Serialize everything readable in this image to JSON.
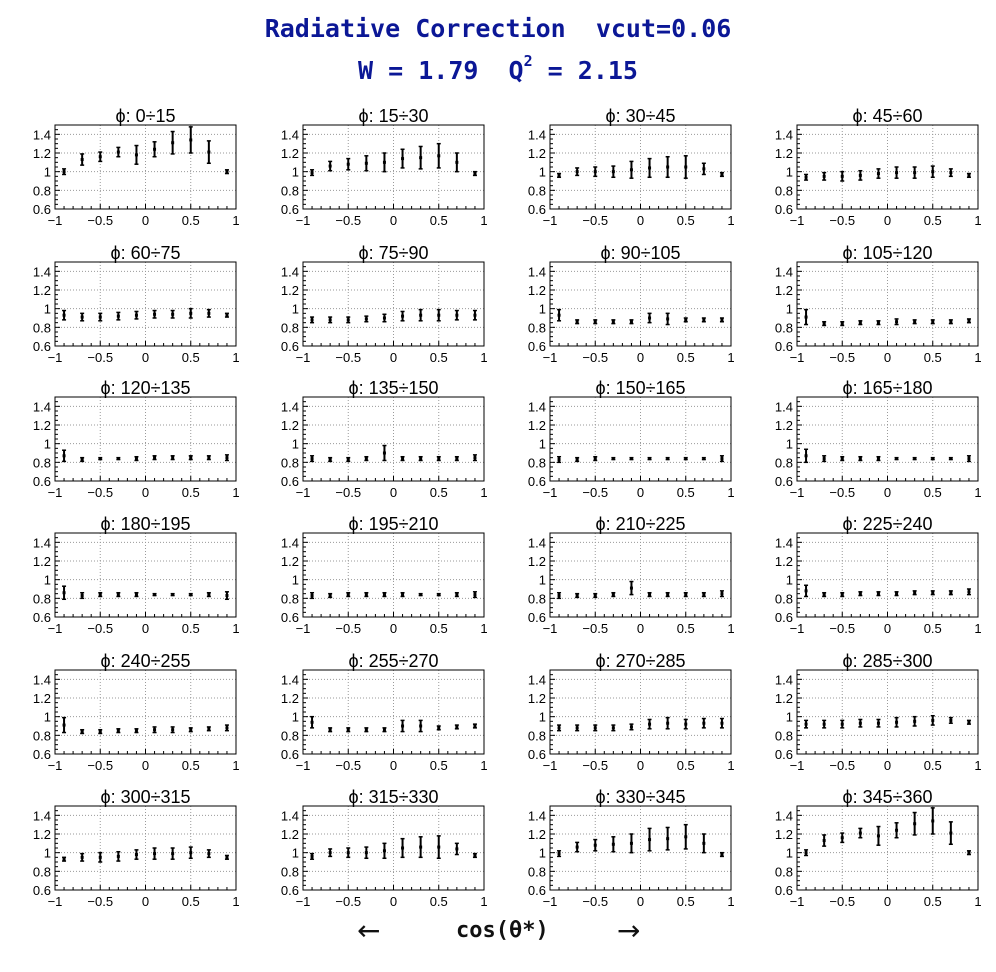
{
  "title": "Radiative Correction  vcut=0.06",
  "subtitle": {
    "w_part": "W = 1.79  Q",
    "sup": "2",
    "q_part": " = 2.15"
  },
  "xlabel": "cos(θ*)",
  "arrows": {
    "left": "←",
    "right": "→"
  },
  "colors": {
    "title": "#0b1796",
    "axes": "#000000",
    "grid": "#9a9a9a"
  },
  "chart_data": {
    "type": "scatter",
    "layout": "grid 6x4",
    "error_bars": true,
    "xlim": [
      -1,
      1
    ],
    "ylim": [
      0.6,
      1.5
    ],
    "x_ticks": [
      -1,
      -0.5,
      0,
      0.5,
      1
    ],
    "x_tick_labels": [
      "−1",
      "−0.5",
      "0",
      "0.5",
      "1"
    ],
    "y_ticks": [
      0.6,
      0.8,
      1,
      1.2,
      1.4
    ],
    "y_tick_labels": [
      "0.6",
      "0.8",
      "1",
      "1.2",
      "1.4"
    ],
    "grid": true,
    "x": [
      -0.9,
      -0.7,
      -0.5,
      -0.3,
      -0.1,
      0.1,
      0.3,
      0.5,
      0.7,
      0.9
    ],
    "panels": [
      {
        "title": "ϕ:  0÷15",
        "y": [
          1.0,
          1.13,
          1.16,
          1.21,
          1.18,
          1.24,
          1.31,
          1.34,
          1.21,
          1.0
        ],
        "err": [
          0.03,
          0.06,
          0.05,
          0.05,
          0.1,
          0.08,
          0.12,
          0.14,
          0.12,
          0.02
        ]
      },
      {
        "title": "ϕ:  15÷30",
        "y": [
          0.99,
          1.06,
          1.08,
          1.09,
          1.1,
          1.14,
          1.15,
          1.17,
          1.1,
          0.98
        ],
        "err": [
          0.03,
          0.05,
          0.06,
          0.08,
          0.1,
          0.1,
          0.12,
          0.13,
          0.1,
          0.02
        ]
      },
      {
        "title": "ϕ:  30÷45",
        "y": [
          0.96,
          1.0,
          1.0,
          1.0,
          1.02,
          1.04,
          1.05,
          1.05,
          1.03,
          0.97
        ],
        "err": [
          0.02,
          0.04,
          0.05,
          0.06,
          0.09,
          0.1,
          0.11,
          0.12,
          0.06,
          0.02
        ]
      },
      {
        "title": "ϕ:  45÷60",
        "y": [
          0.94,
          0.95,
          0.95,
          0.96,
          0.98,
          0.99,
          0.99,
          1.0,
          0.99,
          0.96
        ],
        "err": [
          0.03,
          0.04,
          0.05,
          0.05,
          0.05,
          0.06,
          0.06,
          0.06,
          0.04,
          0.02
        ]
      },
      {
        "title": "ϕ:  60÷75",
        "y": [
          0.93,
          0.91,
          0.91,
          0.92,
          0.93,
          0.94,
          0.94,
          0.95,
          0.95,
          0.93
        ],
        "err": [
          0.05,
          0.04,
          0.04,
          0.04,
          0.04,
          0.04,
          0.04,
          0.05,
          0.04,
          0.02
        ]
      },
      {
        "title": "ϕ:  75÷90",
        "y": [
          0.88,
          0.88,
          0.88,
          0.89,
          0.9,
          0.92,
          0.93,
          0.93,
          0.93,
          0.93
        ],
        "err": [
          0.03,
          0.03,
          0.03,
          0.03,
          0.04,
          0.05,
          0.06,
          0.06,
          0.05,
          0.05
        ]
      },
      {
        "title": "ϕ:  90÷105",
        "y": [
          0.93,
          0.86,
          0.86,
          0.86,
          0.86,
          0.9,
          0.89,
          0.88,
          0.88,
          0.88
        ],
        "err": [
          0.06,
          0.02,
          0.02,
          0.02,
          0.02,
          0.05,
          0.06,
          0.02,
          0.02,
          0.02
        ]
      },
      {
        "title": "ϕ:  105÷120",
        "y": [
          0.91,
          0.84,
          0.84,
          0.85,
          0.85,
          0.86,
          0.86,
          0.86,
          0.86,
          0.87
        ],
        "err": [
          0.08,
          0.02,
          0.02,
          0.02,
          0.02,
          0.03,
          0.02,
          0.02,
          0.02,
          0.02
        ]
      },
      {
        "title": "ϕ: 120÷135",
        "y": [
          0.87,
          0.83,
          0.84,
          0.84,
          0.84,
          0.85,
          0.85,
          0.85,
          0.85,
          0.85
        ],
        "err": [
          0.06,
          0.02,
          0.01,
          0.01,
          0.02,
          0.02,
          0.02,
          0.02,
          0.02,
          0.03
        ]
      },
      {
        "title": "ϕ: 135÷150",
        "y": [
          0.84,
          0.83,
          0.83,
          0.84,
          0.9,
          0.84,
          0.84,
          0.84,
          0.84,
          0.85
        ],
        "err": [
          0.03,
          0.02,
          0.02,
          0.02,
          0.08,
          0.02,
          0.02,
          0.02,
          0.02,
          0.03
        ]
      },
      {
        "title": "ϕ: 150÷165",
        "y": [
          0.83,
          0.83,
          0.84,
          0.84,
          0.84,
          0.84,
          0.84,
          0.84,
          0.84,
          0.84
        ],
        "err": [
          0.03,
          0.02,
          0.02,
          0.01,
          0.01,
          0.01,
          0.01,
          0.01,
          0.01,
          0.03
        ]
      },
      {
        "title": "ϕ: 165÷180",
        "y": [
          0.87,
          0.84,
          0.84,
          0.84,
          0.84,
          0.84,
          0.84,
          0.84,
          0.84,
          0.84
        ],
        "err": [
          0.07,
          0.03,
          0.02,
          0.02,
          0.02,
          0.01,
          0.01,
          0.01,
          0.01,
          0.03
        ]
      },
      {
        "title": "ϕ: 180÷195",
        "y": [
          0.86,
          0.83,
          0.84,
          0.84,
          0.84,
          0.84,
          0.84,
          0.84,
          0.84,
          0.83
        ],
        "err": [
          0.07,
          0.03,
          0.02,
          0.02,
          0.02,
          0.01,
          0.01,
          0.01,
          0.02,
          0.04
        ]
      },
      {
        "title": "ϕ: 195÷210",
        "y": [
          0.83,
          0.83,
          0.84,
          0.84,
          0.84,
          0.84,
          0.84,
          0.84,
          0.84,
          0.84
        ],
        "err": [
          0.03,
          0.02,
          0.02,
          0.02,
          0.02,
          0.02,
          0.01,
          0.01,
          0.02,
          0.03
        ]
      },
      {
        "title": "ϕ: 210÷225",
        "y": [
          0.83,
          0.83,
          0.83,
          0.84,
          0.91,
          0.84,
          0.84,
          0.84,
          0.84,
          0.85
        ],
        "err": [
          0.03,
          0.02,
          0.02,
          0.02,
          0.07,
          0.02,
          0.02,
          0.02,
          0.02,
          0.03
        ]
      },
      {
        "title": "ϕ: 225÷240",
        "y": [
          0.88,
          0.84,
          0.84,
          0.85,
          0.85,
          0.85,
          0.86,
          0.86,
          0.86,
          0.87
        ],
        "err": [
          0.06,
          0.02,
          0.02,
          0.02,
          0.02,
          0.02,
          0.02,
          0.02,
          0.02,
          0.03
        ]
      },
      {
        "title": "ϕ: 240÷255",
        "y": [
          0.91,
          0.84,
          0.84,
          0.85,
          0.85,
          0.86,
          0.86,
          0.86,
          0.87,
          0.88
        ],
        "err": [
          0.08,
          0.02,
          0.02,
          0.02,
          0.02,
          0.03,
          0.03,
          0.02,
          0.02,
          0.03
        ]
      },
      {
        "title": "ϕ: 255÷270",
        "y": [
          0.94,
          0.86,
          0.86,
          0.86,
          0.86,
          0.9,
          0.9,
          0.88,
          0.89,
          0.9
        ],
        "err": [
          0.06,
          0.02,
          0.02,
          0.02,
          0.02,
          0.06,
          0.06,
          0.02,
          0.02,
          0.02
        ]
      },
      {
        "title": "ϕ: 270÷285",
        "y": [
          0.88,
          0.88,
          0.88,
          0.88,
          0.89,
          0.92,
          0.93,
          0.92,
          0.93,
          0.93
        ],
        "err": [
          0.03,
          0.03,
          0.03,
          0.03,
          0.03,
          0.05,
          0.06,
          0.05,
          0.05,
          0.05
        ]
      },
      {
        "title": "ϕ: 285÷300",
        "y": [
          0.92,
          0.92,
          0.92,
          0.93,
          0.93,
          0.94,
          0.95,
          0.96,
          0.96,
          0.94
        ],
        "err": [
          0.04,
          0.04,
          0.04,
          0.04,
          0.04,
          0.05,
          0.05,
          0.05,
          0.03,
          0.02
        ]
      },
      {
        "title": "ϕ: 300÷315",
        "y": [
          0.93,
          0.95,
          0.95,
          0.96,
          0.98,
          0.99,
          0.99,
          1.0,
          0.99,
          0.95
        ],
        "err": [
          0.02,
          0.04,
          0.05,
          0.05,
          0.05,
          0.06,
          0.06,
          0.06,
          0.04,
          0.02
        ]
      },
      {
        "title": "ϕ: 315÷330",
        "y": [
          0.96,
          1.0,
          1.0,
          1.0,
          1.02,
          1.05,
          1.06,
          1.06,
          1.04,
          0.97
        ],
        "err": [
          0.03,
          0.04,
          0.05,
          0.06,
          0.08,
          0.1,
          0.11,
          0.12,
          0.06,
          0.02
        ]
      },
      {
        "title": "ϕ: 330÷345",
        "y": [
          0.99,
          1.06,
          1.08,
          1.09,
          1.1,
          1.14,
          1.15,
          1.17,
          1.1,
          0.98
        ],
        "err": [
          0.03,
          0.05,
          0.06,
          0.08,
          0.1,
          0.12,
          0.12,
          0.13,
          0.1,
          0.02
        ]
      },
      {
        "title": "ϕ: 345÷360",
        "y": [
          1.0,
          1.13,
          1.16,
          1.21,
          1.18,
          1.24,
          1.31,
          1.34,
          1.21,
          1.0
        ],
        "err": [
          0.03,
          0.06,
          0.05,
          0.05,
          0.1,
          0.08,
          0.12,
          0.14,
          0.12,
          0.02
        ]
      }
    ]
  }
}
